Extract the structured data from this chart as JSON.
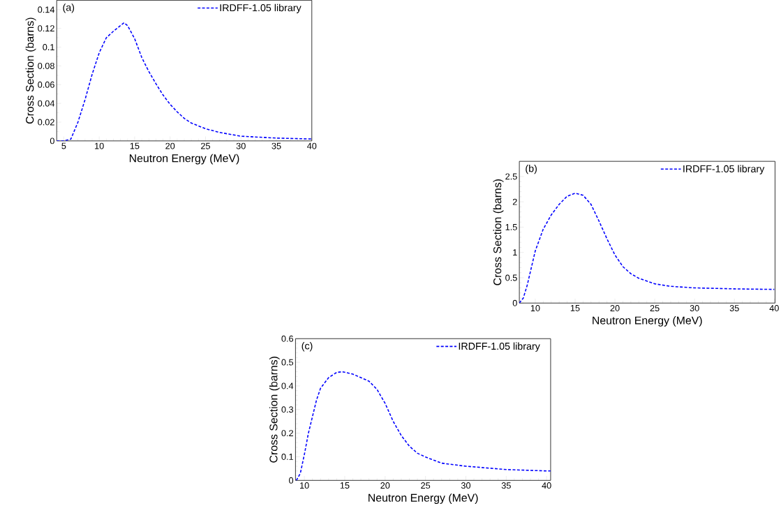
{
  "chart_data": [
    {
      "type": "line",
      "xlabel": "Neutron Energy (MeV)",
      "ylabel": "Cross Section (barns)",
      "annotations": [
        "(a)"
      ],
      "legend": "top right",
      "line_style": "dashed",
      "xlim": [
        4,
        40
      ],
      "ylim": [
        0,
        0.15
      ],
      "xticks": [
        5,
        10,
        15,
        20,
        25,
        30,
        35,
        40
      ],
      "yticks": [
        0,
        0.02,
        0.04,
        0.06,
        0.08,
        0.1,
        0.12,
        0.14
      ],
      "series": [
        {
          "name": "IRDFF-1.05 library",
          "color": "#0000ff",
          "x": [
            4,
            5,
            6,
            7,
            8,
            9,
            10,
            11,
            12,
            13,
            13.5,
            14,
            15,
            16,
            17,
            18,
            19,
            20,
            21,
            22,
            23,
            24,
            25,
            27,
            30,
            35,
            40
          ],
          "values": [
            0,
            0,
            0.002,
            0.02,
            0.044,
            0.071,
            0.094,
            0.11,
            0.117,
            0.123,
            0.126,
            0.123,
            0.109,
            0.089,
            0.074,
            0.061,
            0.049,
            0.039,
            0.031,
            0.024,
            0.019,
            0.016,
            0.013,
            0.009,
            0.005,
            0.003,
            0.002
          ]
        }
      ]
    },
    {
      "type": "line",
      "xlabel": "Neutron Energy (MeV)",
      "ylabel": "Cross Section (barns)",
      "annotations": [
        "(b)"
      ],
      "legend": "top right",
      "line_style": "dashed",
      "xlim": [
        8,
        40.1
      ],
      "ylim": [
        0,
        2.8
      ],
      "xticks": [
        10,
        15,
        20,
        25,
        30,
        35,
        40
      ],
      "yticks": [
        0,
        0.5,
        1,
        1.5,
        2,
        2.5
      ],
      "series": [
        {
          "name": "IRDFF-1.05 library",
          "color": "#0000ff",
          "x": [
            8,
            8.5,
            9,
            10,
            11,
            12,
            13,
            14,
            15,
            16,
            17,
            18,
            19,
            20,
            21,
            22,
            23,
            25,
            27,
            30,
            35,
            40
          ],
          "values": [
            0,
            0.1,
            0.36,
            1.03,
            1.46,
            1.74,
            1.95,
            2.11,
            2.17,
            2.13,
            1.95,
            1.62,
            1.27,
            0.95,
            0.72,
            0.58,
            0.49,
            0.38,
            0.33,
            0.3,
            0.28,
            0.27
          ]
        }
      ]
    },
    {
      "type": "line",
      "xlabel": "Neutron Energy (MeV)",
      "ylabel": "Cross Section (barns)",
      "annotations": [
        "(c)"
      ],
      "legend": "top right",
      "line_style": "dashed",
      "xlim": [
        8.9,
        40.5
      ],
      "ylim": [
        0,
        0.6
      ],
      "xticks": [
        10,
        15,
        20,
        25,
        30,
        35,
        40
      ],
      "yticks": [
        0,
        0.1,
        0.2,
        0.3,
        0.4,
        0.5,
        0.6
      ],
      "series": [
        {
          "name": "IRDFF-1.05 library",
          "color": "#0000ff",
          "x": [
            9,
            9.5,
            10,
            10.5,
            11,
            11.5,
            12,
            13,
            14,
            14.7,
            16,
            17,
            18,
            19,
            20,
            21,
            22,
            23,
            24,
            25,
            27,
            30,
            35,
            40,
            40.5
          ],
          "values": [
            0,
            0.03,
            0.11,
            0.2,
            0.27,
            0.34,
            0.39,
            0.435,
            0.457,
            0.46,
            0.45,
            0.435,
            0.42,
            0.385,
            0.326,
            0.25,
            0.19,
            0.145,
            0.115,
            0.099,
            0.073,
            0.06,
            0.046,
            0.04,
            0.04
          ]
        }
      ]
    }
  ]
}
